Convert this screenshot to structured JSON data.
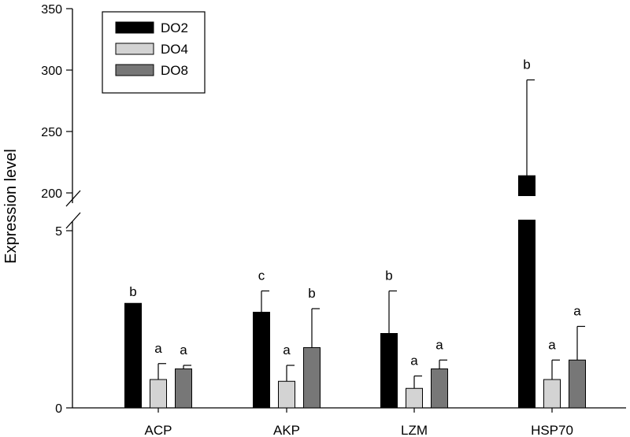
{
  "chart_data": {
    "type": "bar",
    "ylabel": "Expression level",
    "categories": [
      "ACP",
      "AKP",
      "LZM",
      "HSP70"
    ],
    "series": [
      {
        "name": "DO2",
        "color": "#000000",
        "values": [
          2.95,
          2.7,
          2.1,
          214
        ],
        "errors": [
          2.85,
          3.3,
          3.3,
          292
        ],
        "labels": [
          "b",
          "c",
          "b",
          "b"
        ]
      },
      {
        "name": "DO4",
        "color": "#d3d3d3",
        "values": [
          0.8,
          0.75,
          0.55,
          0.8
        ],
        "errors": [
          1.25,
          1.2,
          0.9,
          1.35
        ],
        "labels": [
          "a",
          "a",
          "a",
          "a"
        ]
      },
      {
        "name": "DO8",
        "color": "#777777",
        "values": [
          1.1,
          1.7,
          1.1,
          1.35
        ],
        "errors": [
          1.2,
          2.8,
          1.35,
          2.3
        ],
        "labels": [
          "a",
          "b",
          "a",
          "a"
        ]
      }
    ],
    "axis_break": {
      "lower": [
        0,
        5
      ],
      "upper": [
        200,
        350
      ]
    },
    "yticks_lower": [
      0,
      5
    ],
    "yticks_upper": [
      200,
      250,
      300,
      350
    ],
    "legend_position": "top-left"
  }
}
